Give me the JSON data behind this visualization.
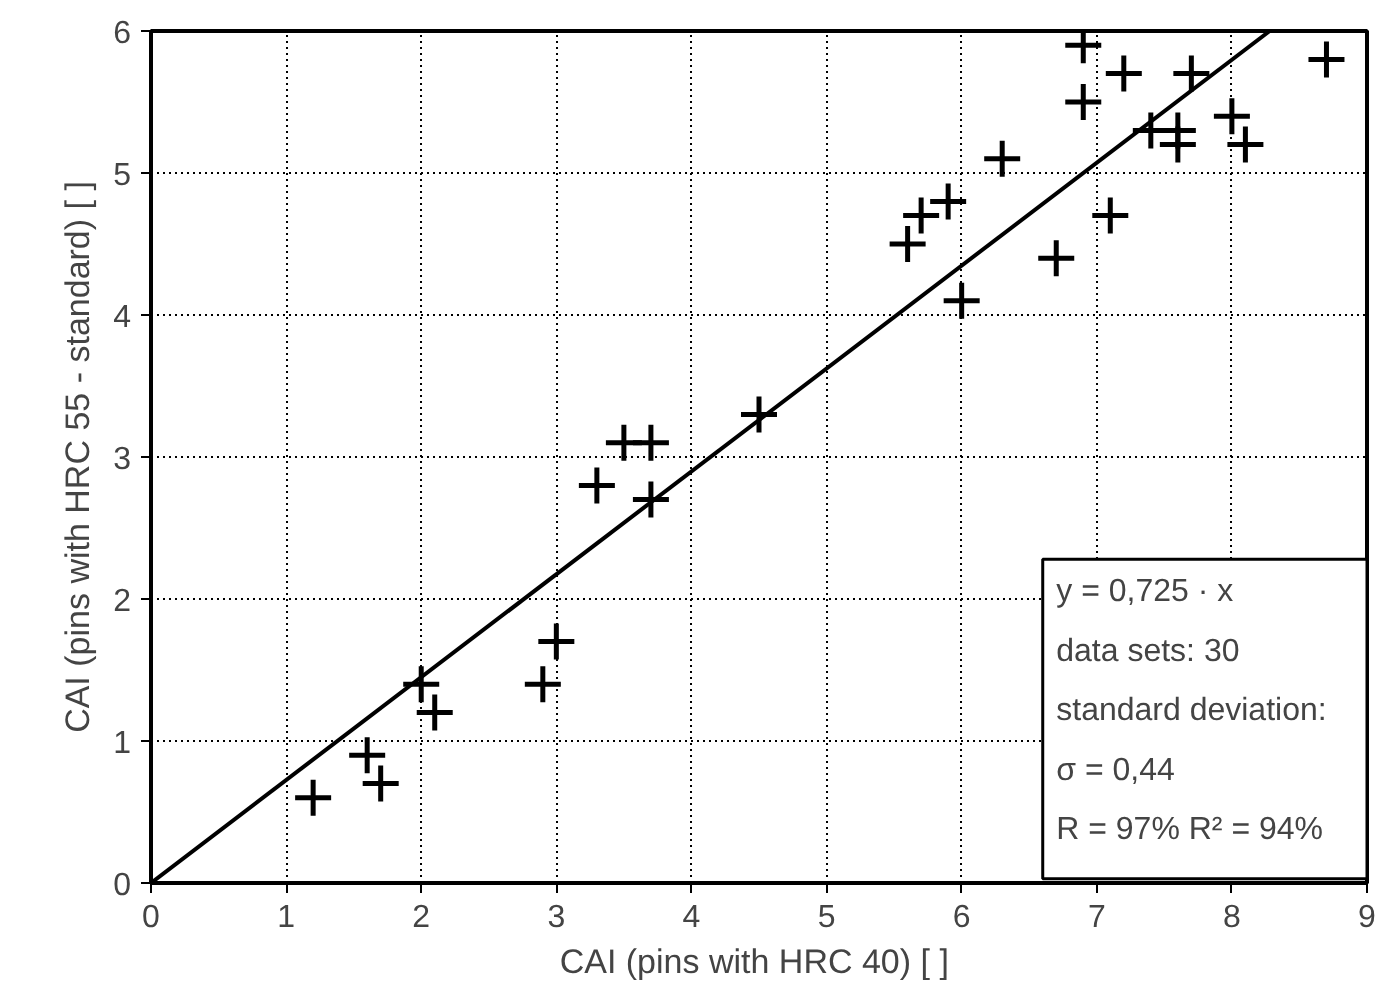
{
  "chart_data": {
    "type": "scatter",
    "xlabel": "CAI (pins with HRC 40) [  ]",
    "ylabel": "CAI (pins with HRC 55 - standard) [ ]",
    "xlim": [
      0,
      9
    ],
    "ylim": [
      0,
      6
    ],
    "xticks": [
      0,
      1,
      2,
      3,
      4,
      5,
      6,
      7,
      8,
      9
    ],
    "yticks": [
      0,
      1,
      2,
      3,
      4,
      5,
      6
    ],
    "grid": true,
    "marker": "cross",
    "series": [
      {
        "color": "#000000",
        "x": [
          1.2,
          1.6,
          1.7,
          2.0,
          2.1,
          2.9,
          3.0,
          3.3,
          3.5,
          3.7,
          3.7,
          4.5,
          5.6,
          5.7,
          5.9,
          6.0,
          6.3,
          6.7,
          6.9,
          6.9,
          7.1,
          7.2,
          7.4,
          7.6,
          7.6,
          7.7,
          8.0,
          8.1,
          8.7
        ],
        "values": [
          0.6,
          0.9,
          0.7,
          1.4,
          1.2,
          1.4,
          1.7,
          2.8,
          3.1,
          3.1,
          2.7,
          3.3,
          4.5,
          4.7,
          4.8,
          4.1,
          5.1,
          4.4,
          5.9,
          5.5,
          4.7,
          5.7,
          5.3,
          5.3,
          5.2,
          5.7,
          5.4,
          5.2,
          5.8
        ]
      },
      {
        "type": "line",
        "marker": "none",
        "color": "#000000",
        "x": [
          0,
          8.28
        ],
        "values": [
          0,
          6
        ]
      }
    ],
    "annotations": [
      "y = 0,725 · x",
      "data sets: 30",
      "standard deviation:",
      "σ = 0,44",
      "R = 97%   R² = 94%"
    ]
  }
}
